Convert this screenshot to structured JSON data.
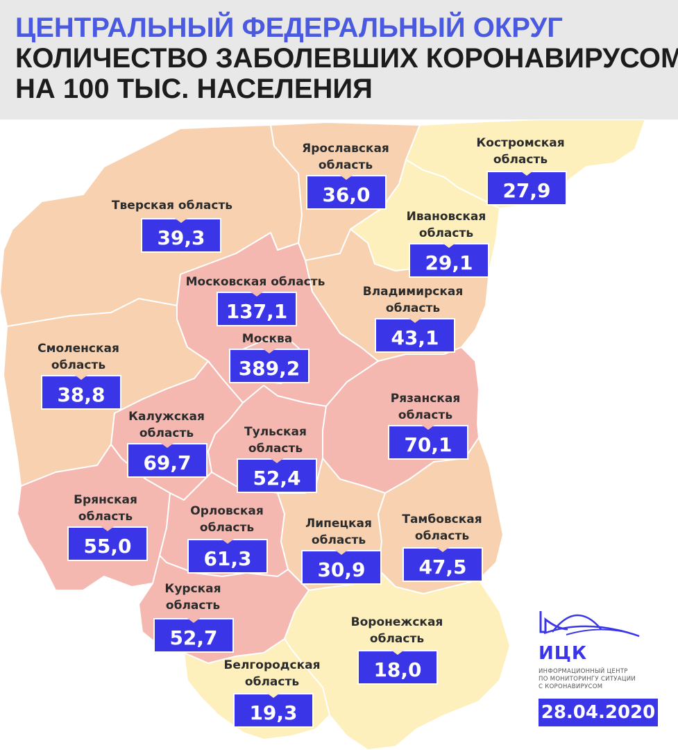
{
  "header": {
    "title": "ЦЕНТРАЛЬНЫЙ ФЕДЕРАЛЬНЫЙ ОКРУГ",
    "subtitle_line1": "КОЛИЧЕСТВО ЗАБОЛЕВШИХ КОРОНАВИРУСОМ",
    "subtitle_line2": "НА 100 ТЫС. НАСЕЛЕНИЯ"
  },
  "colors": {
    "title": "#4a5ae0",
    "value_box": "#3b35e8",
    "high": "#f5b8b0",
    "medium": "#f8d2b0",
    "low": "#fdf0bc"
  },
  "regions": [
    {
      "id": "tver",
      "name": "Тверская область",
      "value": "39,3"
    },
    {
      "id": "yaroslavl",
      "name_line1": "Ярославская",
      "name_line2": "область",
      "value": "36,0"
    },
    {
      "id": "kostroma",
      "name_line1": "Костромская",
      "name_line2": "область",
      "value": "27,9"
    },
    {
      "id": "ivanovo",
      "name_line1": "Ивановская",
      "name_line2": "область",
      "value": "29,1"
    },
    {
      "id": "moscow-oblast",
      "name": "Московская область",
      "value": "137,1"
    },
    {
      "id": "moscow",
      "name": "Москва",
      "value": "389,2"
    },
    {
      "id": "vladimir",
      "name_line1": "Владимирская",
      "name_line2": "область",
      "value": "43,1"
    },
    {
      "id": "smolensk",
      "name_line1": "Смоленская",
      "name_line2": "область",
      "value": "38,8"
    },
    {
      "id": "kaluga",
      "name_line1": "Калужская",
      "name_line2": "область",
      "value": "69,7"
    },
    {
      "id": "tula",
      "name_line1": "Тульская",
      "name_line2": "область",
      "value": "52,4"
    },
    {
      "id": "ryazan",
      "name_line1": "Рязанская",
      "name_line2": "область",
      "value": "70,1"
    },
    {
      "id": "bryansk",
      "name_line1": "Брянская",
      "name_line2": "область",
      "value": "55,0"
    },
    {
      "id": "orel",
      "name_line1": "Орловская",
      "name_line2": "область",
      "value": "61,3"
    },
    {
      "id": "lipetsk",
      "name_line1": "Липецкая",
      "name_line2": "область",
      "value": "30,9"
    },
    {
      "id": "tambov",
      "name_line1": "Тамбовская",
      "name_line2": "область",
      "value": "47,5"
    },
    {
      "id": "kursk",
      "name_line1": "Курская",
      "name_line2": "область",
      "value": "52,7"
    },
    {
      "id": "voronezh",
      "name_line1": "Воронежская",
      "name_line2": "область",
      "value": "18,0"
    },
    {
      "id": "belgorod",
      "name_line1": "Белгородская",
      "name_line2": "область",
      "value": "19,3"
    }
  ],
  "logo": {
    "abbr": "ИЦК",
    "line1": "ИНФОРМАЦИОННЫЙ ЦЕНТР",
    "line2": "ПО МОНИТОРИНГУ СИТУАЦИИ",
    "line3": "С КОРОНАВИРУСОМ"
  },
  "date": "28.04.2020"
}
